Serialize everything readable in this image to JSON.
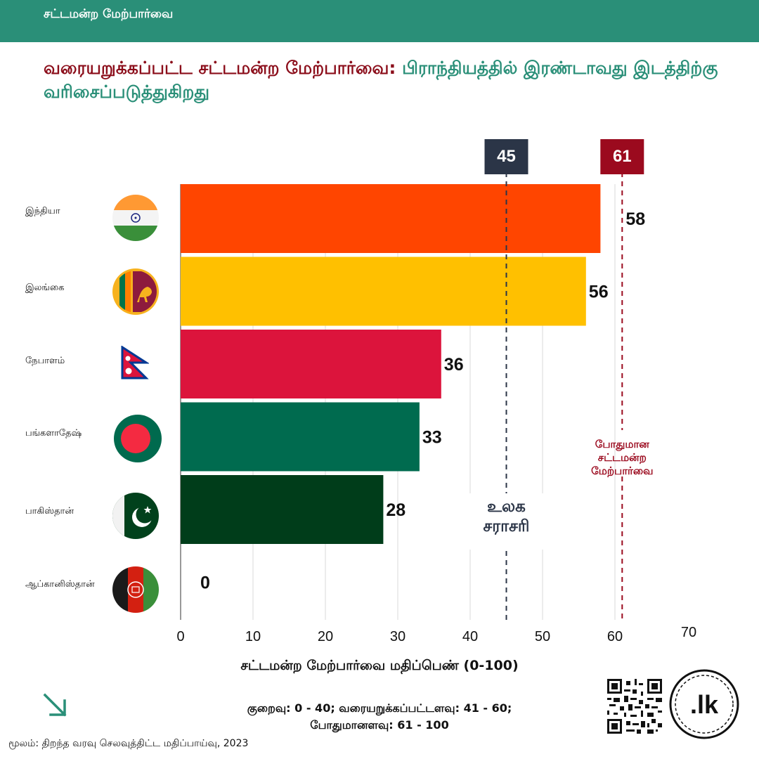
{
  "header": {
    "label": "சட்டமன்ற மேற்பார்வை"
  },
  "title": {
    "part1": "வரையறுக்கப்பட்ட சட்டமன்ற மேற்பார்வை:",
    "part2": "பிராந்தியத்தில் இரண்டாவது இடத்திற்கு வரிசைப்படுத்துகிறது"
  },
  "colors": {
    "header_bg": "#2a8f78",
    "title_dark_red": "#8b0d1a",
    "title_green": "#2a8f78",
    "global_avg": "#2b3547",
    "adequate": "#9b0a1e"
  },
  "chart_data": {
    "type": "bar",
    "orientation": "horizontal",
    "categories": [
      "இந்தியா",
      "இலங்கை",
      "நேபாளம்",
      "பங்களாதேஷ்",
      "பாகிஸ்தான்",
      "ஆப்கானிஸ்தான்"
    ],
    "values": [
      58,
      56,
      36,
      33,
      28,
      0
    ],
    "bar_colors": [
      "#ff4500",
      "#ffc000",
      "#dc143c",
      "#006b4f",
      "#003d1a",
      "#888888"
    ],
    "flags": [
      "india-flag-icon",
      "sri-lanka-flag-icon",
      "nepal-flag-icon",
      "bangladesh-flag-icon",
      "pakistan-flag-icon",
      "afghanistan-flag-icon"
    ],
    "xlim": [
      0,
      70
    ],
    "xticks": [
      0,
      10,
      20,
      30,
      40,
      50,
      60,
      70
    ],
    "xlabel": "சட்டமன்ற மேற்பார்வை மதிப்பெண் (0-100)",
    "grid": true,
    "reference_lines": [
      {
        "value": 45,
        "label": "உலக சராசரி",
        "color": "#2b3547"
      },
      {
        "value": 61,
        "label": "போதுமான சட்டமன்ற மேற்பார்வை",
        "color": "#9b0a1e"
      }
    ]
  },
  "footer": {
    "scale_line1": "குறைவு: 0 - 40; வரையறுக்கப்பட்டளவு: 41 - 60;",
    "scale_line2": "போதுமானளவு: 61 - 100",
    "source": "மூலம்: திறந்த வரவு செலவுத்திட்ட மதிப்பாய்வு, 2023"
  },
  "logo": {
    "text": ".lk"
  }
}
